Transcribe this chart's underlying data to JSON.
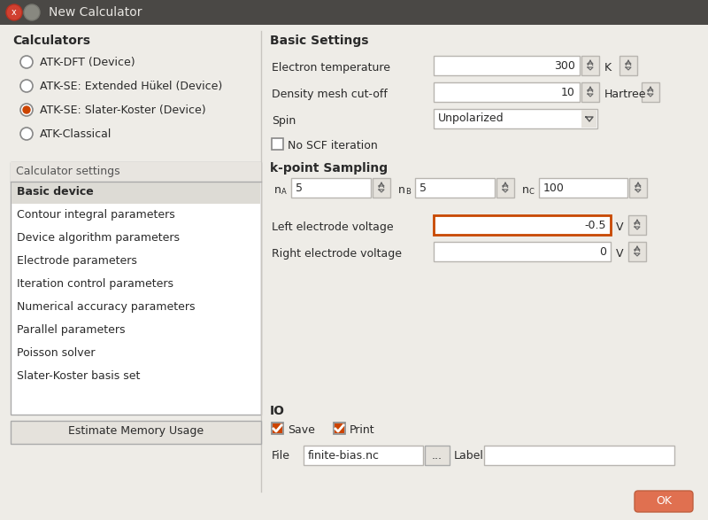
{
  "title": "New Calculator",
  "bg_color": "#e2dfd9",
  "title_bar_color": "#4a4845",
  "title_text_color": "#e8e6e2",
  "panel_bg": "#eeece7",
  "list_bg": "#ffffff",
  "list_selected_bg": "#dddbd5",
  "input_bg": "#ffffff",
  "input_border": "#b8b5b0",
  "highlight_border": "#c84800",
  "button_bg": "#e5e2dc",
  "ok_button_bg": "#e07050",
  "ok_button_text": "#ffffff",
  "text_color": "#2a2a2a",
  "subtext_color": "#555555",
  "radio_selected_color": "#cc4400",
  "checkbox_color": "#cc4400",
  "calculators_label": "Calculators",
  "radio_options": [
    "ATK-DFT (Device)",
    "ATK-SE: Extended Hükel (Device)",
    "ATK-SE: Slater-Koster (Device)",
    "ATK-Classical"
  ],
  "radio_selected": 2,
  "calc_settings_label": "Calculator settings",
  "settings_list": [
    "Basic device",
    "Contour integral parameters",
    "Device algorithm parameters",
    "Electrode parameters",
    "Iteration control parameters",
    "Numerical accuracy parameters",
    "Parallel parameters",
    "Poisson solver",
    "Slater-Koster basis set"
  ],
  "settings_selected": 0,
  "basic_settings_label": "Basic Settings",
  "no_scf_label": "No SCF iteration",
  "kpoint_label": "k-point Sampling",
  "kpoint_na": "5",
  "kpoint_nb": "5",
  "kpoint_nc": "100",
  "io_label": "IO",
  "save_label": "Save",
  "print_label": "Print",
  "file_label": "File",
  "file_value": "finite-bias.nc",
  "label_label": "Label",
  "estimate_btn": "Estimate Memory Usage",
  "ok_btn": "OK",
  "left_electrode_label": "Left electrode voltage",
  "right_electrode_label": "Right electrode voltage",
  "electron_temp_label": "Electron temperature",
  "density_label": "Density mesh cut-off",
  "spin_label": "Spin",
  "electron_temp_val": "300",
  "electron_temp_unit": "K",
  "density_val": "10",
  "density_unit": "Hartree",
  "spin_val": "Unpolarized",
  "left_elec_val": "-0.5",
  "right_elec_val": "0",
  "elec_unit": "V"
}
